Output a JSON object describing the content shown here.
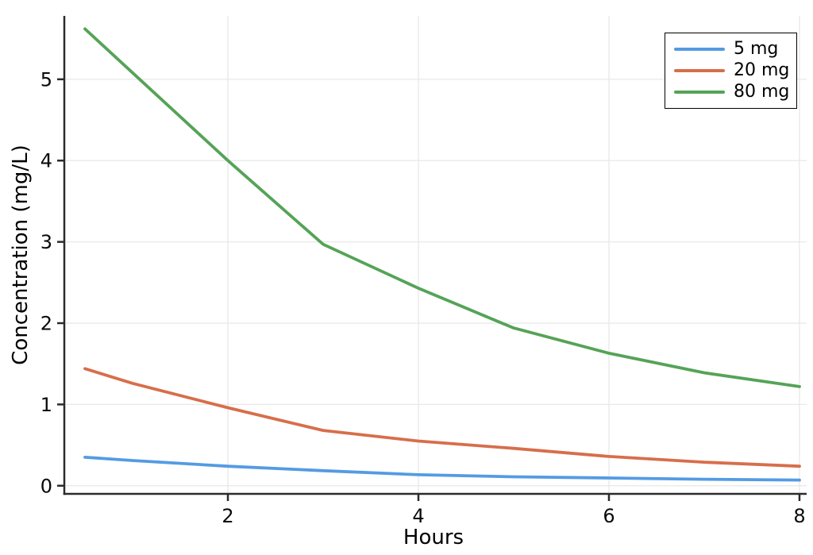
{
  "chart_data": {
    "type": "line",
    "title": "",
    "xlabel": "Hours",
    "ylabel": "Concentration (mg/L)",
    "x": [
      0.5,
      1,
      2,
      3,
      4,
      5,
      6,
      7,
      8
    ],
    "series": [
      {
        "name": "5 mg",
        "color": "#549BE3",
        "values": [
          0.35,
          0.31,
          0.24,
          0.185,
          0.135,
          0.11,
          0.095,
          0.08,
          0.07
        ]
      },
      {
        "name": "20 mg",
        "color": "#D76E4B",
        "values": [
          1.44,
          1.26,
          0.96,
          0.68,
          0.55,
          0.46,
          0.36,
          0.29,
          0.24
        ]
      },
      {
        "name": "80 mg",
        "color": "#55A357",
        "values": [
          5.62,
          5.08,
          4.0,
          2.97,
          2.43,
          1.94,
          1.63,
          1.39,
          1.22
        ]
      }
    ],
    "xtick_values": [
      2,
      4,
      6,
      8
    ],
    "xtick_labels": [
      "2",
      "4",
      "6",
      "8"
    ],
    "ytick_values": [
      0,
      1,
      2,
      3,
      4,
      5
    ],
    "ytick_labels": [
      "0",
      "1",
      "2",
      "3",
      "4",
      "5"
    ],
    "xlim": [
      0.283,
      8.042
    ],
    "ylim": [
      -0.1,
      5.78
    ],
    "grid": true,
    "legend_position": "top-right",
    "colors": {
      "background": "#FFFFFF",
      "gridline": "#E8E8E8",
      "spine": "#2B2B2B",
      "text": "#000000"
    }
  }
}
